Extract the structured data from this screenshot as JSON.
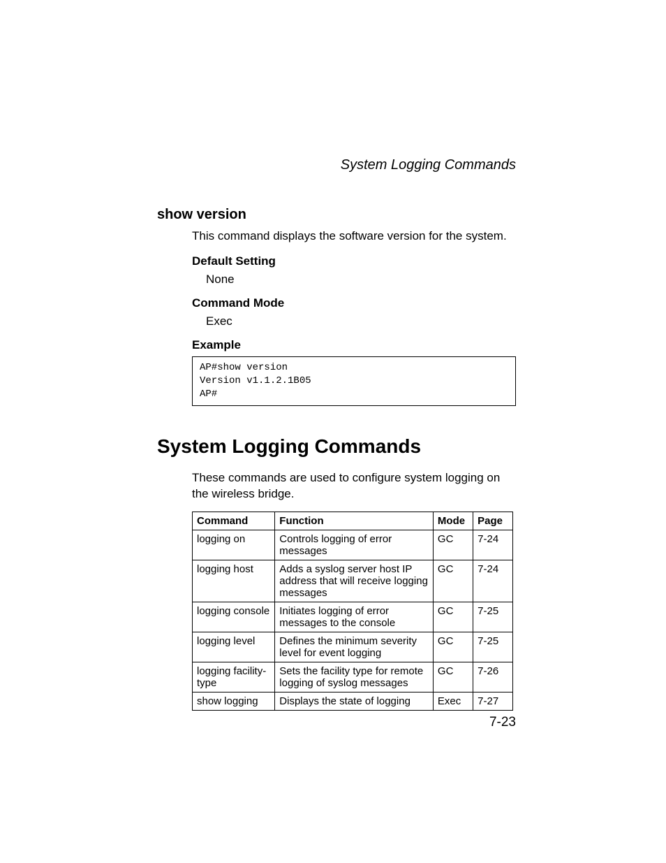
{
  "running_header": "System Logging Commands",
  "command_section": {
    "title": "show version",
    "description": "This command displays the software version for the system.",
    "default_setting_label": "Default Setting",
    "default_setting_value": "None",
    "command_mode_label": "Command Mode",
    "command_mode_value": "Exec",
    "example_label": "Example",
    "example_code": "AP#show version\nVersion v1.1.2.1B05\nAP#"
  },
  "logging_section": {
    "title": "System Logging Commands",
    "intro": "These commands are used to configure system logging on the wireless bridge.",
    "table": {
      "headers": {
        "command": "Command",
        "function": "Function",
        "mode": "Mode",
        "page": "Page"
      },
      "rows": [
        {
          "command": "logging on",
          "function": "Controls logging of error messages",
          "mode": "GC",
          "page": "7-24"
        },
        {
          "command": "logging host",
          "function": "Adds a syslog server host IP address that will receive logging messages",
          "mode": "GC",
          "page": "7-24"
        },
        {
          "command": "logging console",
          "function": "Initiates logging of error messages to the console",
          "mode": "GC",
          "page": "7-25"
        },
        {
          "command": "logging level",
          "function": "Defines the minimum severity level for event logging",
          "mode": "GC",
          "page": "7-25"
        },
        {
          "command": "logging facility-type",
          "function": "Sets the facility type for remote logging of syslog messages",
          "mode": "GC",
          "page": "7-26"
        },
        {
          "command": "show logging",
          "function": "Displays the state of logging",
          "mode": "Exec",
          "page": "7-27"
        }
      ]
    }
  },
  "page_number": "7-23"
}
